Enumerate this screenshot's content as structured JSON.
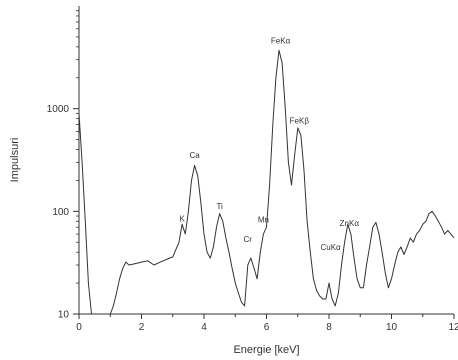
{
  "chart_data": {
    "type": "line",
    "title": "",
    "xlabel": "Energie [keV]",
    "ylabel": "Impulsuri",
    "x_scale": "linear",
    "y_scale": "log",
    "xlim": [
      0,
      12
    ],
    "ylim": [
      10,
      10000
    ],
    "x_ticks": [
      0,
      2,
      4,
      6,
      8,
      10,
      12
    ],
    "x_tick_labels": [
      "0",
      "2",
      "4",
      "6",
      "8",
      "10",
      "12"
    ],
    "y_ticks": [
      10,
      100,
      1000
    ],
    "y_tick_labels": [
      "10",
      "100",
      "1000"
    ],
    "grid": false,
    "line_color": "#333333",
    "series": [
      {
        "x": [
          0.0,
          0.1,
          0.2,
          0.3,
          0.4,
          0.6,
          0.8,
          1.0,
          1.1,
          1.2,
          1.3,
          1.4,
          1.5,
          1.6,
          1.8,
          2.0,
          2.2,
          2.4,
          2.6,
          2.8,
          3.0,
          3.2,
          3.3,
          3.4,
          3.5,
          3.6,
          3.7,
          3.8,
          3.9,
          4.0,
          4.1,
          4.2,
          4.3,
          4.4,
          4.5,
          4.6,
          4.7,
          4.8,
          4.9,
          5.0,
          5.1,
          5.2,
          5.3,
          5.4,
          5.5,
          5.6,
          5.7,
          5.8,
          5.9,
          6.0,
          6.1,
          6.2,
          6.3,
          6.4,
          6.5,
          6.6,
          6.7,
          6.8,
          6.9,
          7.0,
          7.1,
          7.2,
          7.3,
          7.4,
          7.5,
          7.6,
          7.7,
          7.8,
          7.9,
          8.0,
          8.1,
          8.2,
          8.3,
          8.4,
          8.5,
          8.6,
          8.7,
          8.8,
          8.9,
          9.0,
          9.1,
          9.2,
          9.3,
          9.4,
          9.5,
          9.6,
          9.7,
          9.8,
          9.9,
          10.0,
          10.1,
          10.2,
          10.3,
          10.4,
          10.5,
          10.6,
          10.7,
          10.8,
          10.9,
          11.0,
          11.1,
          11.2,
          11.3,
          11.4,
          11.5,
          11.6,
          11.7,
          11.8,
          11.9,
          12.0
        ],
        "y": [
          900,
          300,
          80,
          20,
          10,
          10,
          10,
          10,
          12,
          16,
          22,
          28,
          32,
          30,
          31,
          32,
          33,
          30,
          32,
          34,
          36,
          50,
          75,
          60,
          100,
          200,
          280,
          220,
          120,
          60,
          40,
          35,
          45,
          70,
          95,
          80,
          55,
          40,
          28,
          20,
          16,
          13,
          12,
          30,
          35,
          28,
          22,
          40,
          60,
          70,
          180,
          700,
          2000,
          3700,
          2800,
          1000,
          300,
          180,
          350,
          650,
          550,
          250,
          80,
          40,
          22,
          17,
          15,
          14,
          14,
          20,
          14,
          12,
          16,
          30,
          50,
          75,
          60,
          35,
          22,
          18,
          18,
          30,
          45,
          70,
          78,
          60,
          40,
          25,
          18,
          22,
          30,
          40,
          45,
          38,
          45,
          55,
          50,
          60,
          65,
          75,
          80,
          95,
          100,
          90,
          80,
          70,
          60,
          65,
          60,
          55
        ]
      }
    ],
    "annotations": [
      {
        "text": "FeKα",
        "x": 6.45,
        "y": 4300
      },
      {
        "text": "FeKβ",
        "x": 7.05,
        "y": 720
      },
      {
        "text": "Ca",
        "x": 3.7,
        "y": 330
      },
      {
        "text": "K",
        "x": 3.3,
        "y": 80
      },
      {
        "text": "Ti",
        "x": 4.5,
        "y": 105
      },
      {
        "text": "Cr",
        "x": 5.4,
        "y": 50
      },
      {
        "text": "Mn",
        "x": 5.9,
        "y": 78
      },
      {
        "text": "ZnKα",
        "x": 8.65,
        "y": 72
      },
      {
        "text": "CuKα",
        "x": 8.05,
        "y": 42
      }
    ]
  }
}
